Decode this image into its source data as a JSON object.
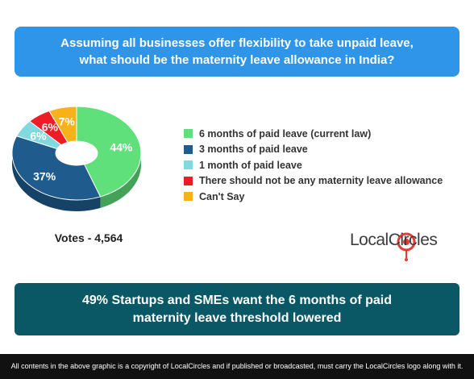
{
  "question": "Assuming all businesses offer flexibility to take unpaid leave, what should be the maternity leave allowance in India?",
  "votes_label": "Votes - 4,564",
  "logo": {
    "text": "LocalCircles"
  },
  "headline": "49% Startups and SMEs want the 6 months of paid maternity leave threshold lowered",
  "footer": "All contents in the above graphic is a copyright of LocalCircles and if published or broadcasted, must carry the LocalCircles logo along with it.",
  "chart_data": {
    "type": "pie",
    "title": "",
    "categories": [
      "6 months of paid leave (current law)",
      "3 months of paid leave",
      "1 month of paid leave",
      "There should not be any maternity leave allowance",
      "Can't Say"
    ],
    "values": [
      44,
      37,
      6,
      6,
      7
    ],
    "value_labels": [
      "44%",
      "37%",
      "6%",
      "6%",
      "7%"
    ],
    "colors": [
      "#5fe07a",
      "#1f5b8c",
      "#7fd9df",
      "#ee1c25",
      "#f7b21a"
    ],
    "legend": "right"
  }
}
